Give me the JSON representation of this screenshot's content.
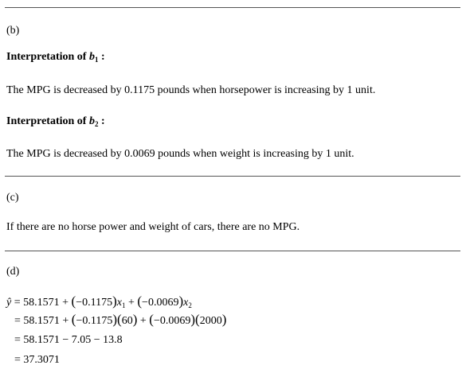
{
  "part_b": {
    "label": "(b)",
    "b1_heading_prefix": "Interpretation of ",
    "b1_symbol": "b",
    "b1_subscript": "1",
    "b1_colon": " :",
    "b1_text": "The MPG is decreased by 0.1175 pounds when horsepower is increasing by 1 unit.",
    "b2_heading_prefix": "Interpretation of ",
    "b2_symbol": "b",
    "b2_subscript": "2",
    "b2_colon": " :",
    "b2_text": "The MPG is decreased by 0.0069 pounds when weight is increasing by 1 unit."
  },
  "part_c": {
    "label": "(c)",
    "text": "If there are no horse power and weight of cars, there are no MPG."
  },
  "part_d": {
    "label": "(d)",
    "yhat": "ŷ",
    "eq1_a": " = 58.1571 + ",
    "eq1_b": "−0.1175",
    "eq1_x": "x",
    "eq1_x_sub": "1",
    "eq1_c": " + ",
    "eq1_d": "−0.0069",
    "eq1_x2": "x",
    "eq1_x2_sub": "2",
    "eq2_a": "= 58.1571 + ",
    "eq2_b": "−0.1175",
    "eq2_c": "60",
    "eq2_d": " + ",
    "eq2_e": "−0.0069",
    "eq2_f": "2000",
    "eq3": "= 58.1571 − 7.05 − 13.8",
    "eq4": "= 37.3071"
  }
}
